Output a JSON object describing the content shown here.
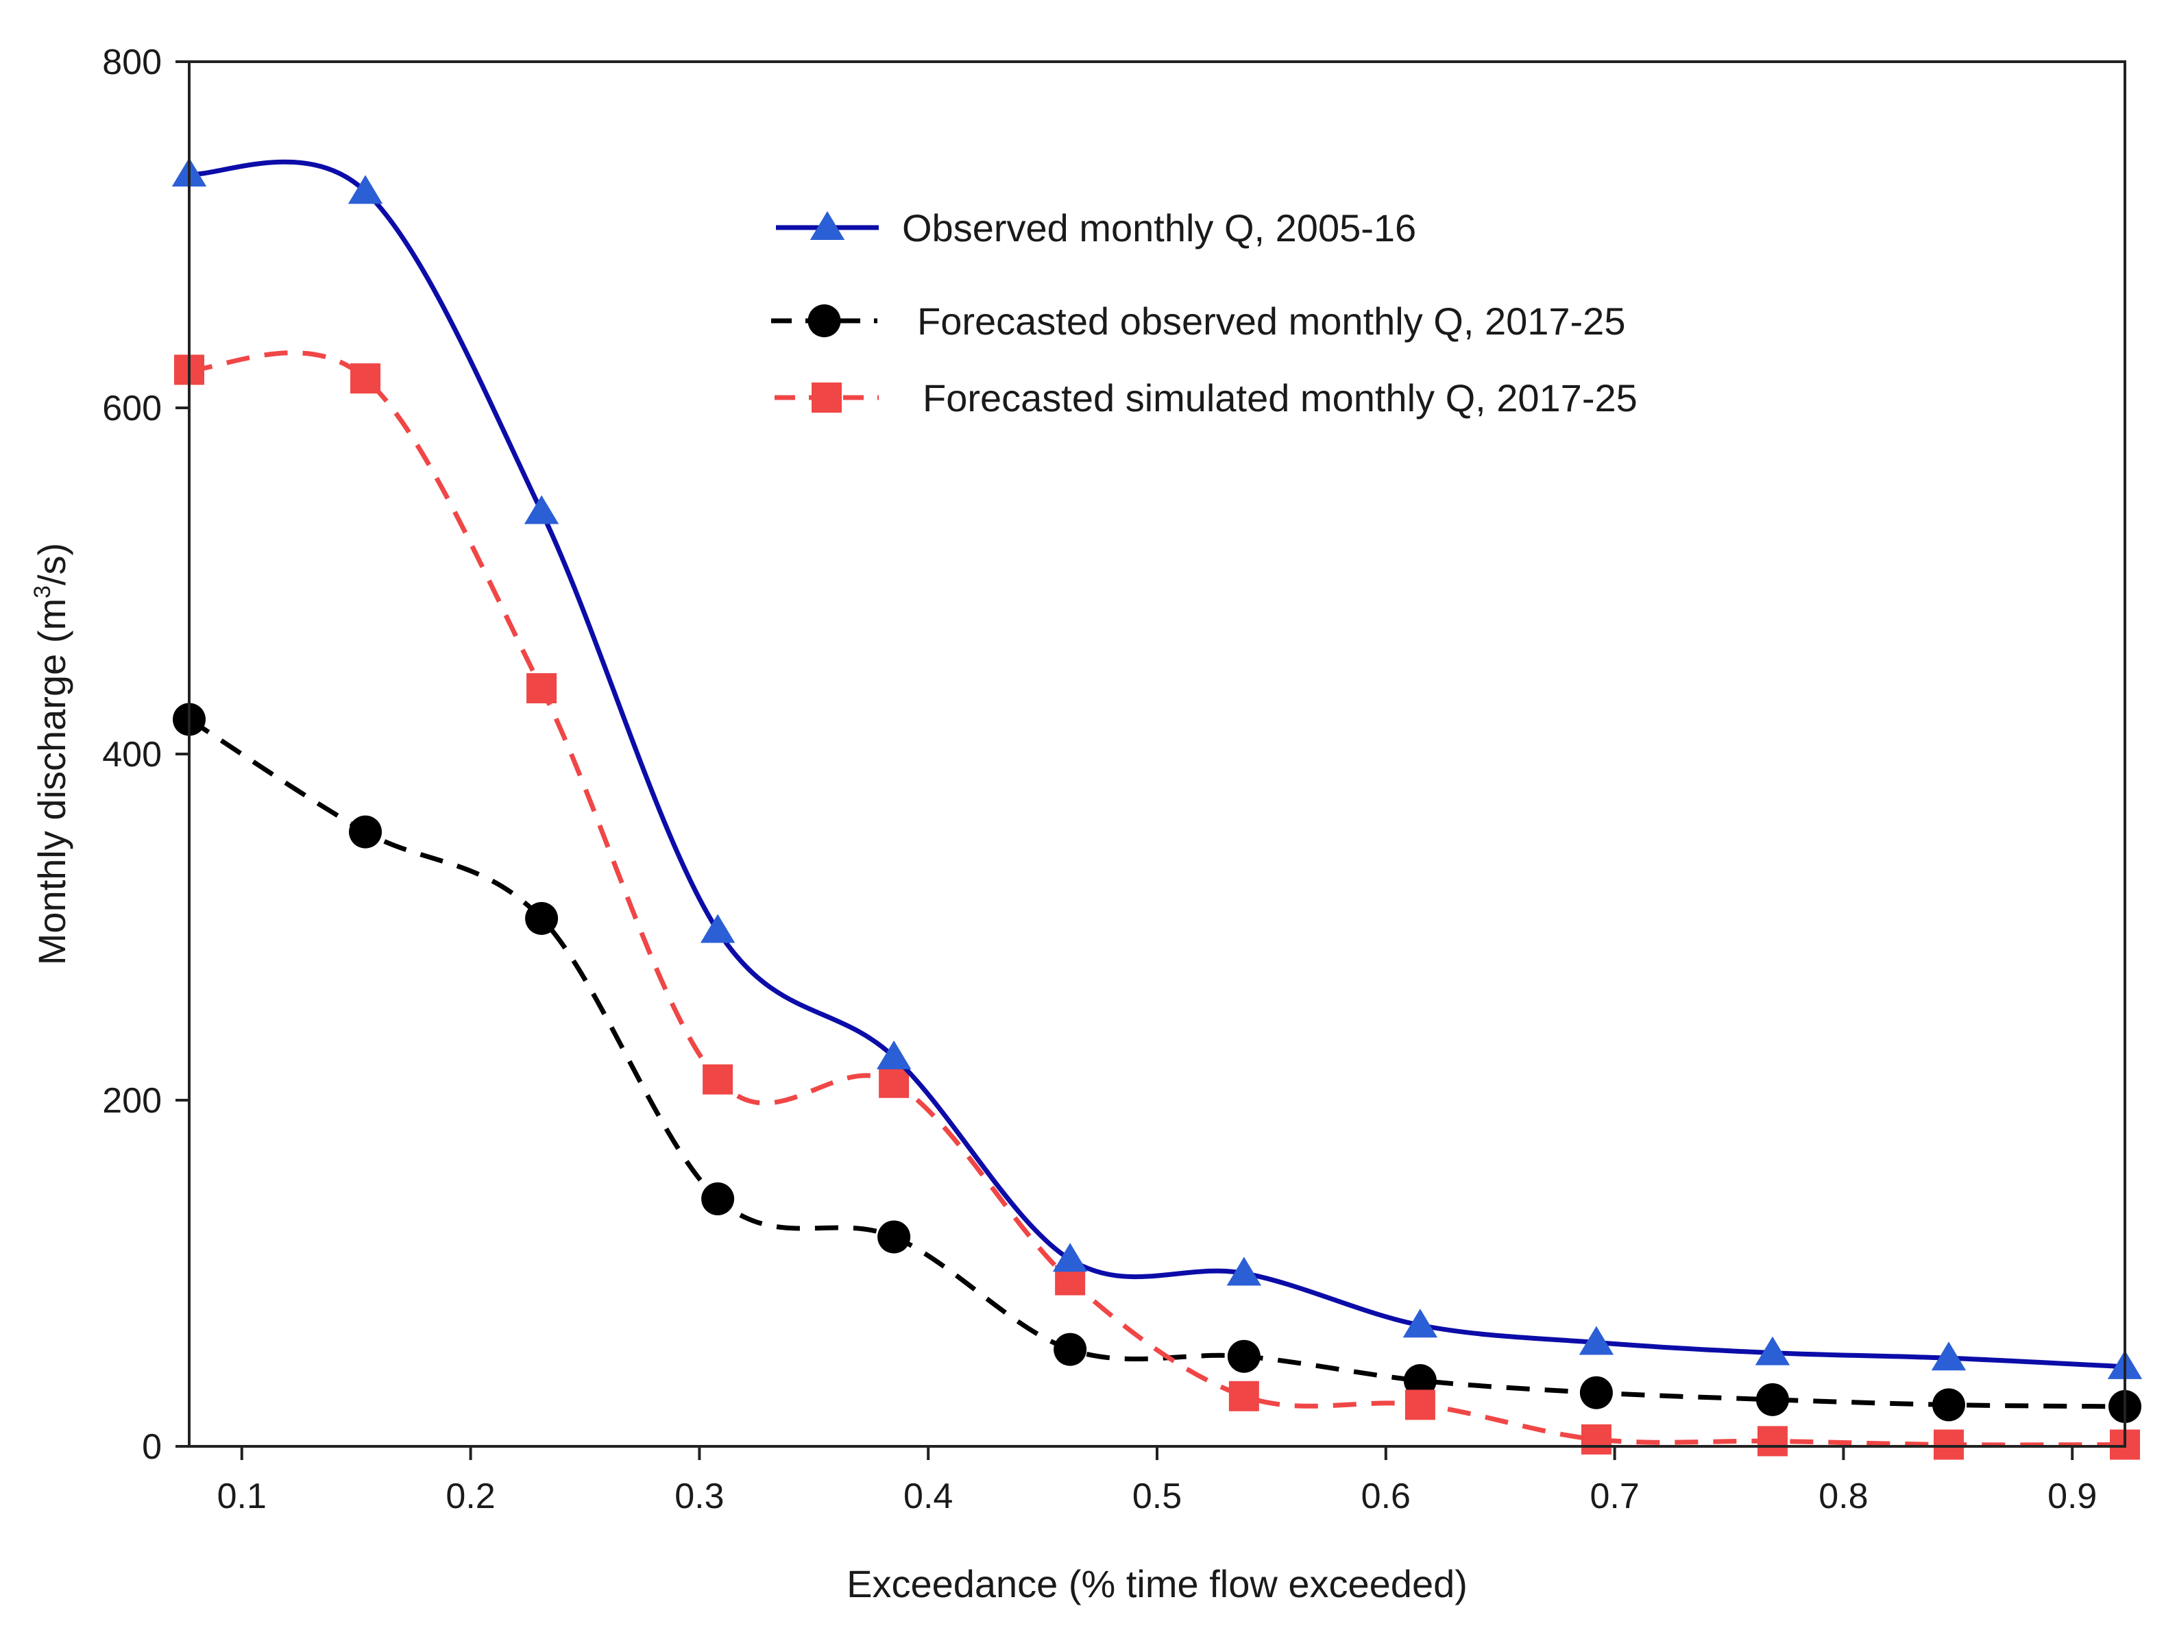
{
  "chart_data": {
    "type": "line",
    "title": "",
    "xlabel": "Exceedance (% time flow exceeded)",
    "ylabel": {
      "main": "Monthly discharge (m",
      "superscript": "3",
      "suffix": "/s)"
    },
    "xlim": [
      0.077,
      0.923
    ],
    "ylim": [
      0,
      800
    ],
    "x_ticks": [
      0.1,
      0.2,
      0.3,
      0.4,
      0.5,
      0.6,
      0.7,
      0.8,
      0.9
    ],
    "x_tick_labels": [
      "0.1",
      "0.2",
      "0.3",
      "0.4",
      "0.5",
      "0.6",
      "0.7",
      "0.8",
      "0.9"
    ],
    "y_ticks": [
      0,
      200,
      400,
      600,
      800
    ],
    "y_tick_labels": [
      "0",
      "200",
      "400",
      "600",
      "800"
    ],
    "grid": false,
    "legend_position": "top-center",
    "x": [
      0.077,
      0.154,
      0.231,
      0.308,
      0.385,
      0.462,
      0.538,
      0.615,
      0.692,
      0.769,
      0.846,
      0.923
    ],
    "series": [
      {
        "name": "Observed monthly Q, 2005-16",
        "color": "#0c0ca8",
        "marker_color": "#2b5fd6",
        "marker": "triangle",
        "dash": "solid",
        "values": [
          735,
          725,
          540,
          298,
          225,
          108,
          100,
          70,
          60,
          54,
          51,
          46
        ]
      },
      {
        "name": "Forecasted observed monthly Q, 2017-25",
        "color": "#000000",
        "marker_color": "#000000",
        "marker": "circle",
        "dash": "dashed",
        "values": [
          420,
          355,
          305,
          143,
          121,
          56,
          52,
          38,
          31,
          27,
          24,
          23
        ]
      },
      {
        "name": "Forecasted simulated monthly Q, 2017-25",
        "color": "#f04646",
        "marker_color": "#f04646",
        "marker": "square",
        "dash": "dashed",
        "values": [
          622,
          617,
          438,
          212,
          210,
          96,
          29,
          24,
          4,
          3,
          1,
          1
        ]
      }
    ]
  }
}
